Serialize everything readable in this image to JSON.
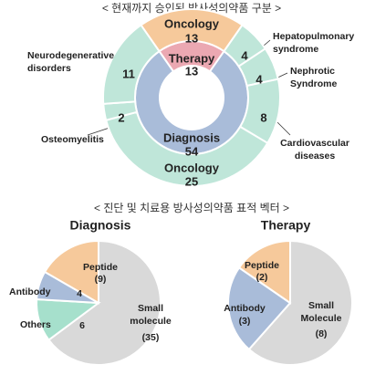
{
  "headings": [
    "< 현재까지 승인된 방사성의약품 구분 >",
    "< 진단 및 치료용 방사성의약품 표적 벡터 >"
  ],
  "chart_data": [
    {
      "type": "nested-donut",
      "inner": {
        "categories": [
          "Therapy",
          "Diagnosis"
        ],
        "values": [
          13,
          54
        ],
        "colors": [
          "#eba8b2",
          "#a9bcd9"
        ]
      },
      "outer": {
        "categories": [
          "Oncology",
          "Hepatopulmonary syndrome",
          "Nephrotic Syndrome",
          "Cardiovascular diseases",
          "Oncology",
          "Osteomyelitis",
          "Neurodegenerative disorders"
        ],
        "values": [
          13,
          4,
          4,
          8,
          25,
          2,
          11
        ],
        "colors": [
          "#f6c99b",
          "#bfe6d9",
          "#bfe6d9",
          "#bfe6d9",
          "#bfe6d9",
          "#bfe6d9",
          "#bfe6d9"
        ]
      }
    },
    {
      "type": "pie",
      "title": "Diagnosis",
      "categories": [
        "Small molecule",
        "Others",
        "Antibody",
        "Peptide"
      ],
      "values": [
        35,
        6,
        4,
        9
      ],
      "value_labels": [
        "(35)",
        "6",
        "4",
        "(9)"
      ],
      "colors": [
        "#d9d9d9",
        "#a6e0cc",
        "#a9bcd9",
        "#f6c99b"
      ]
    },
    {
      "type": "pie",
      "title": "Therapy",
      "categories": [
        "Small Molecule",
        "Antibody",
        "Peptide"
      ],
      "values": [
        8,
        3,
        2
      ],
      "value_labels": [
        "(8)",
        "(3)",
        "(2)"
      ],
      "colors": [
        "#d9d9d9",
        "#a9bcd9",
        "#f6c99b"
      ]
    }
  ]
}
